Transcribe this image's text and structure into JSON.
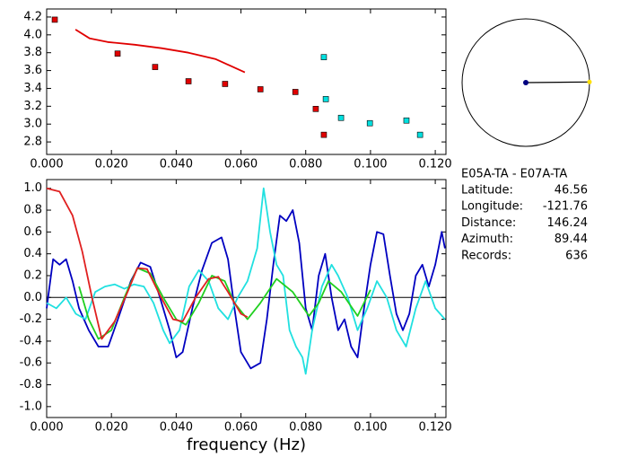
{
  "chart_data": [
    {
      "type": "scatter",
      "xlim": [
        0,
        0.1233
      ],
      "ylim": [
        2.66,
        4.29
      ],
      "xticks": [
        {
          "value": 0,
          "label": "0.000"
        },
        {
          "value": 0.02,
          "label": "0.020"
        },
        {
          "value": 0.04,
          "label": "0.040"
        },
        {
          "value": 0.06,
          "label": "0.060"
        },
        {
          "value": 0.08,
          "label": "0.080"
        },
        {
          "value": 0.1,
          "label": "0.100"
        },
        {
          "value": 0.12,
          "label": "0.120"
        }
      ],
      "yticks": [
        2.8,
        {
          "value": 3,
          "label": "3.0"
        },
        3.2,
        3.4,
        3.6,
        3.8,
        {
          "value": 4,
          "label": "4.0"
        },
        4.2
      ],
      "series": [
        {
          "type": "scatter",
          "color": "#e00000",
          "x": [
            0.0025,
            0.0219,
            0.0335,
            0.0438,
            0.0551,
            0.066,
            0.0768,
            0.0831,
            0.0856
          ],
          "values": [
            4.17,
            3.79,
            3.64,
            3.48,
            3.45,
            3.39,
            3.36,
            3.17,
            2.88
          ]
        },
        {
          "type": "scatter",
          "color": "#00e0e0",
          "x": [
            0.0856,
            0.0862,
            0.0909,
            0.0998,
            0.1111,
            0.1153
          ],
          "values": [
            3.75,
            3.28,
            3.07,
            3.01,
            3.04,
            2.88
          ]
        },
        {
          "type": "line",
          "color": "#e00000",
          "x": [
            0.0089,
            0.0133,
            0.0188,
            0.0272,
            0.0355,
            0.0438,
            0.0521,
            0.0612
          ],
          "values": [
            4.06,
            3.96,
            3.92,
            3.89,
            3.85,
            3.8,
            3.73,
            3.58
          ]
        }
      ]
    },
    {
      "type": "line",
      "x_label": "frequency (Hz)",
      "xlim": [
        0,
        0.1233
      ],
      "ylim": [
        -1.1,
        1.08
      ],
      "xticks": [
        {
          "value": 0,
          "label": "0.000"
        },
        {
          "value": 0.02,
          "label": "0.020"
        },
        {
          "value": 0.04,
          "label": "0.040"
        },
        {
          "value": 0.06,
          "label": "0.060"
        },
        {
          "value": 0.08,
          "label": "0.080"
        },
        {
          "value": 0.1,
          "label": "0.100"
        },
        {
          "value": 0.12,
          "label": "0.120"
        }
      ],
      "yticks": [
        {
          "value": -1,
          "label": "-1.0"
        },
        -0.8,
        -0.6,
        -0.4,
        -0.2,
        {
          "value": 0,
          "label": "0.0"
        },
        0.2,
        0.4,
        0.6,
        0.8,
        {
          "value": 1,
          "label": "1.0"
        }
      ],
      "series": [
        {
          "type": "line",
          "color": "#0000c0",
          "x": [
            0,
            0.002,
            0.004,
            0.006,
            0.008,
            0.01,
            0.013,
            0.016,
            0.019,
            0.022,
            0.026,
            0.029,
            0.032,
            0.035,
            0.038,
            0.04,
            0.042,
            0.045,
            0.048,
            0.051,
            0.054,
            0.056,
            0.058,
            0.06,
            0.063,
            0.066,
            0.068,
            0.07,
            0.072,
            0.074,
            0.076,
            0.078,
            0.08,
            0.082,
            0.084,
            0.086,
            0.088,
            0.09,
            0.092,
            0.094,
            0.096,
            0.098,
            0.1,
            0.102,
            0.104,
            0.106,
            0.108,
            0.11,
            0.112,
            0.114,
            0.116,
            0.118,
            0.12,
            0.122,
            0.123
          ],
          "values": [
            -0.1,
            0.35,
            0.3,
            0.35,
            0.15,
            -0.1,
            -0.3,
            -0.45,
            -0.45,
            -0.2,
            0.15,
            0.32,
            0.28,
            0.0,
            -0.3,
            -0.55,
            -0.5,
            -0.1,
            0.25,
            0.5,
            0.55,
            0.35,
            -0.1,
            -0.5,
            -0.65,
            -0.6,
            -0.2,
            0.3,
            0.75,
            0.7,
            0.8,
            0.5,
            -0.1,
            -0.3,
            0.2,
            0.4,
            0.0,
            -0.3,
            -0.2,
            -0.45,
            -0.55,
            -0.1,
            0.3,
            0.6,
            0.58,
            0.2,
            -0.15,
            -0.3,
            -0.15,
            0.2,
            0.3,
            0.1,
            0.3,
            0.6,
            0.45
          ]
        },
        {
          "type": "line",
          "color": "#20e0e0",
          "x": [
            0,
            0.003,
            0.006,
            0.009,
            0.012,
            0.015,
            0.018,
            0.021,
            0.024,
            0.027,
            0.03,
            0.033,
            0.036,
            0.038,
            0.041,
            0.044,
            0.047,
            0.05,
            0.053,
            0.056,
            0.059,
            0.062,
            0.065,
            0.067,
            0.069,
            0.071,
            0.073,
            0.075,
            0.077,
            0.079,
            0.08,
            0.082,
            0.085,
            0.088,
            0.09,
            0.093,
            0.096,
            0.099,
            0.102,
            0.105,
            0.108,
            0.111,
            0.114,
            0.117,
            0.12,
            0.123
          ],
          "values": [
            -0.05,
            -0.1,
            0.0,
            -0.15,
            -0.2,
            0.05,
            0.1,
            0.12,
            0.08,
            0.12,
            0.1,
            -0.05,
            -0.3,
            -0.42,
            -0.3,
            0.1,
            0.25,
            0.15,
            -0.1,
            -0.2,
            0.0,
            0.15,
            0.45,
            1.0,
            0.6,
            0.3,
            0.2,
            -0.3,
            -0.45,
            -0.55,
            -0.7,
            -0.3,
            0.1,
            0.3,
            0.2,
            0.0,
            -0.3,
            -0.1,
            0.15,
            0.0,
            -0.3,
            -0.45,
            -0.1,
            0.15,
            -0.1,
            -0.2
          ]
        },
        {
          "type": "line",
          "color": "#20d020",
          "x": [
            0.01,
            0.013,
            0.016,
            0.02,
            0.024,
            0.028,
            0.032,
            0.036,
            0.04,
            0.043,
            0.047,
            0.051,
            0.055,
            0.058,
            0.062,
            0.066,
            0.071,
            0.076,
            0.081,
            0.084,
            0.087,
            0.091,
            0.096,
            0.1
          ],
          "values": [
            0.1,
            -0.2,
            -0.38,
            -0.3,
            0.0,
            0.27,
            0.22,
            0.0,
            -0.2,
            -0.25,
            -0.05,
            0.2,
            0.15,
            -0.05,
            -0.2,
            -0.05,
            0.17,
            0.05,
            -0.17,
            -0.05,
            0.15,
            0.05,
            -0.17,
            0.07
          ]
        },
        {
          "type": "line",
          "color": "#e02020",
          "x": [
            0,
            0.004,
            0.008,
            0.011,
            0.014,
            0.017,
            0.021,
            0.025,
            0.028,
            0.031,
            0.035,
            0.039,
            0.042,
            0.046,
            0.05,
            0.053,
            0.056,
            0.06,
            0.062
          ],
          "values": [
            1.0,
            0.97,
            0.75,
            0.42,
            0.0,
            -0.38,
            -0.22,
            0.05,
            0.27,
            0.26,
            0.02,
            -0.2,
            -0.22,
            0.0,
            0.17,
            0.19,
            0.05,
            -0.15,
            -0.18
          ]
        }
      ]
    }
  ],
  "info": {
    "title": "E05A-TA - E07A-TA",
    "rows": [
      {
        "label": "Latitude:",
        "value": 46.56
      },
      {
        "label": "Longitude:",
        "value": -121.76
      },
      {
        "label": "Distance:",
        "value": 146.24
      },
      {
        "label": "Azimuth:",
        "value": 89.44
      },
      {
        "label": "Records:",
        "value": 636
      }
    ]
  }
}
